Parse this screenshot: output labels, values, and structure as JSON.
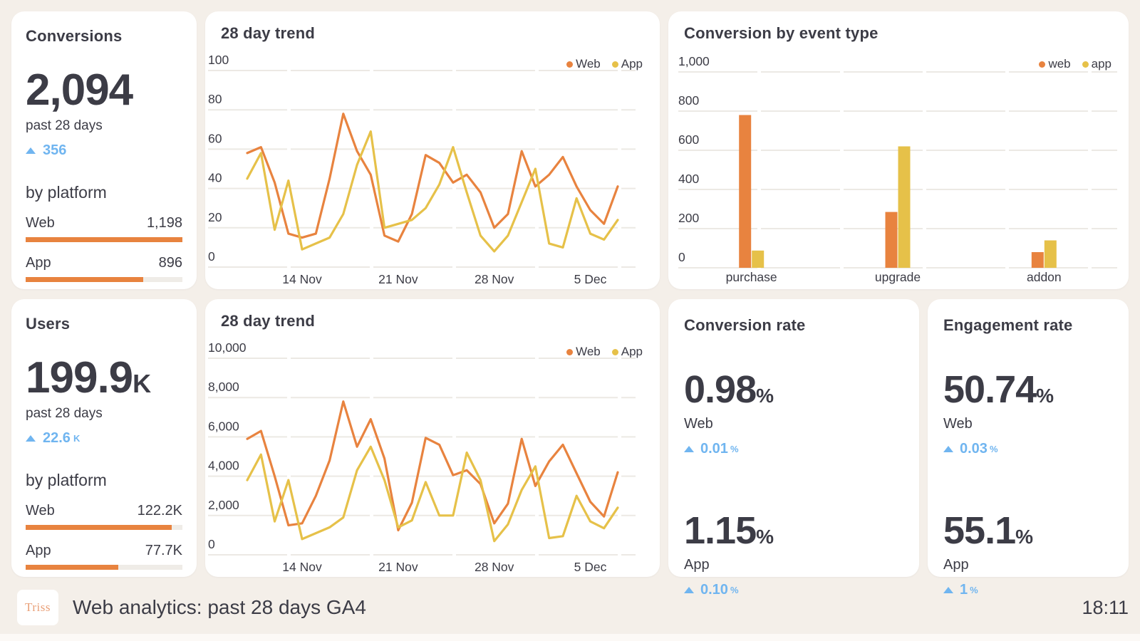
{
  "colors": {
    "web": "#e8833f",
    "app": "#e6c149",
    "delta_blue": "#70b5f0",
    "text": "#3c3c46",
    "grid": "#ece9e4",
    "bar_track": "#efece7",
    "background": "#f4efe9",
    "card": "#ffffff",
    "logo_text": "#e9a078"
  },
  "scorecards": {
    "conversions": {
      "title": "Conversions",
      "value": "2,094",
      "value_suffix": "",
      "period": "past 28 days",
      "delta": "356",
      "delta_suffix": "",
      "breakdown_heading": "by platform",
      "platforms": [
        {
          "label": "Web",
          "value": "1,198",
          "pct": 100
        },
        {
          "label": "App",
          "value": "896",
          "pct": 75
        }
      ]
    },
    "users": {
      "title": "Users",
      "value": "199.9",
      "value_suffix": "K",
      "period": "past 28 days",
      "delta": "22.6",
      "delta_suffix": "K",
      "breakdown_heading": "by platform",
      "platforms": [
        {
          "label": "Web",
          "value": "122.2K",
          "pct": 93
        },
        {
          "label": "App",
          "value": "77.7K",
          "pct": 59
        }
      ]
    }
  },
  "rates": {
    "conversion_rate": {
      "title": "Conversion rate",
      "items": [
        {
          "value": "0.98",
          "unit": "%",
          "label": "Web",
          "delta": "0.01",
          "delta_unit": "%"
        },
        {
          "value": "1.15",
          "unit": "%",
          "label": "App",
          "delta": "0.10",
          "delta_unit": "%"
        }
      ]
    },
    "engagement_rate": {
      "title": "Engagement rate",
      "items": [
        {
          "value": "50.74",
          "unit": "%",
          "label": "Web",
          "delta": "0.03",
          "delta_unit": "%"
        },
        {
          "value": "55.1",
          "unit": "%",
          "label": "App",
          "delta": "1",
          "delta_unit": "%"
        }
      ]
    }
  },
  "chart_data": [
    {
      "id": "trend_conversions",
      "type": "line",
      "title": "28 day trend",
      "ylim": [
        0,
        100
      ],
      "ytick_values": [
        0,
        20,
        40,
        60,
        80,
        100
      ],
      "ytick_labels": [
        "0",
        "20",
        "40",
        "60",
        "80",
        "100"
      ],
      "xtick_labels": [
        "14 Nov",
        "21 Nov",
        "28 Nov",
        "5 Dec"
      ],
      "xtick_indices": [
        4,
        11,
        18,
        25
      ],
      "grid": true,
      "legend_position": "top-right",
      "legend": [
        {
          "label": "Web",
          "color_key": "web"
        },
        {
          "label": "App",
          "color_key": "app"
        }
      ],
      "series": [
        {
          "name": "Web",
          "color_key": "web",
          "values": [
            58,
            61,
            43,
            17,
            15,
            17,
            45,
            78,
            59,
            47,
            16,
            13,
            27,
            57,
            53,
            43,
            47,
            38,
            20,
            27,
            59,
            41,
            47,
            56,
            41,
            29,
            22,
            41
          ]
        },
        {
          "name": "App",
          "color_key": "app",
          "values": [
            45,
            58,
            19,
            44,
            9,
            12,
            15,
            27,
            52,
            69,
            20,
            22,
            24,
            30,
            42,
            61,
            38,
            16,
            8,
            16,
            33,
            50,
            12,
            10,
            35,
            17,
            14,
            24
          ]
        }
      ]
    },
    {
      "id": "events_by_type",
      "type": "bar",
      "title": "Conversion by event type",
      "ylim": [
        0,
        1000
      ],
      "ytick_values": [
        0,
        200,
        400,
        600,
        800,
        1000
      ],
      "ytick_labels": [
        "0",
        "200",
        "400",
        "600",
        "800",
        "1,000"
      ],
      "categories": [
        "purchase",
        "upgrade",
        "addon"
      ],
      "grid": true,
      "legend_position": "top-right",
      "legend": [
        {
          "label": "web",
          "color_key": "web"
        },
        {
          "label": "app",
          "color_key": "app"
        }
      ],
      "series": [
        {
          "name": "web",
          "color_key": "web",
          "values": [
            780,
            285,
            80
          ]
        },
        {
          "name": "app",
          "color_key": "app",
          "values": [
            88,
            620,
            140
          ]
        }
      ]
    },
    {
      "id": "trend_users",
      "type": "line",
      "title": "28 day trend",
      "ylim": [
        0,
        10000
      ],
      "ytick_values": [
        0,
        2000,
        4000,
        6000,
        8000,
        10000
      ],
      "ytick_labels": [
        "0",
        "2,000",
        "4,000",
        "6,000",
        "8,000",
        "10,000"
      ],
      "xtick_labels": [
        "14 Nov",
        "21 Nov",
        "28 Nov",
        "5 Dec"
      ],
      "xtick_indices": [
        4,
        11,
        18,
        25
      ],
      "grid": true,
      "legend_position": "top-right",
      "legend": [
        {
          "label": "Web",
          "color_key": "web"
        },
        {
          "label": "App",
          "color_key": "app"
        }
      ],
      "series": [
        {
          "name": "Web",
          "color_key": "web",
          "values": [
            5900,
            6300,
            4000,
            1500,
            1600,
            3000,
            4800,
            7800,
            5500,
            6900,
            4900,
            1250,
            2650,
            5950,
            5600,
            4050,
            4300,
            3600,
            1600,
            2600,
            5900,
            3500,
            4750,
            5600,
            4150,
            2700,
            1950,
            4200
          ]
        },
        {
          "name": "App",
          "color_key": "app",
          "values": [
            3800,
            5100,
            1700,
            3800,
            800,
            1100,
            1400,
            1900,
            4300,
            5500,
            3800,
            1400,
            1750,
            3700,
            2000,
            2000,
            5200,
            3800,
            700,
            1550,
            3300,
            4500,
            850,
            950,
            3000,
            1700,
            1350,
            2400
          ]
        }
      ]
    }
  ],
  "footer": {
    "logo": "Triss",
    "title": "Web analytics: past 28 days GA4",
    "time": "18:11"
  }
}
